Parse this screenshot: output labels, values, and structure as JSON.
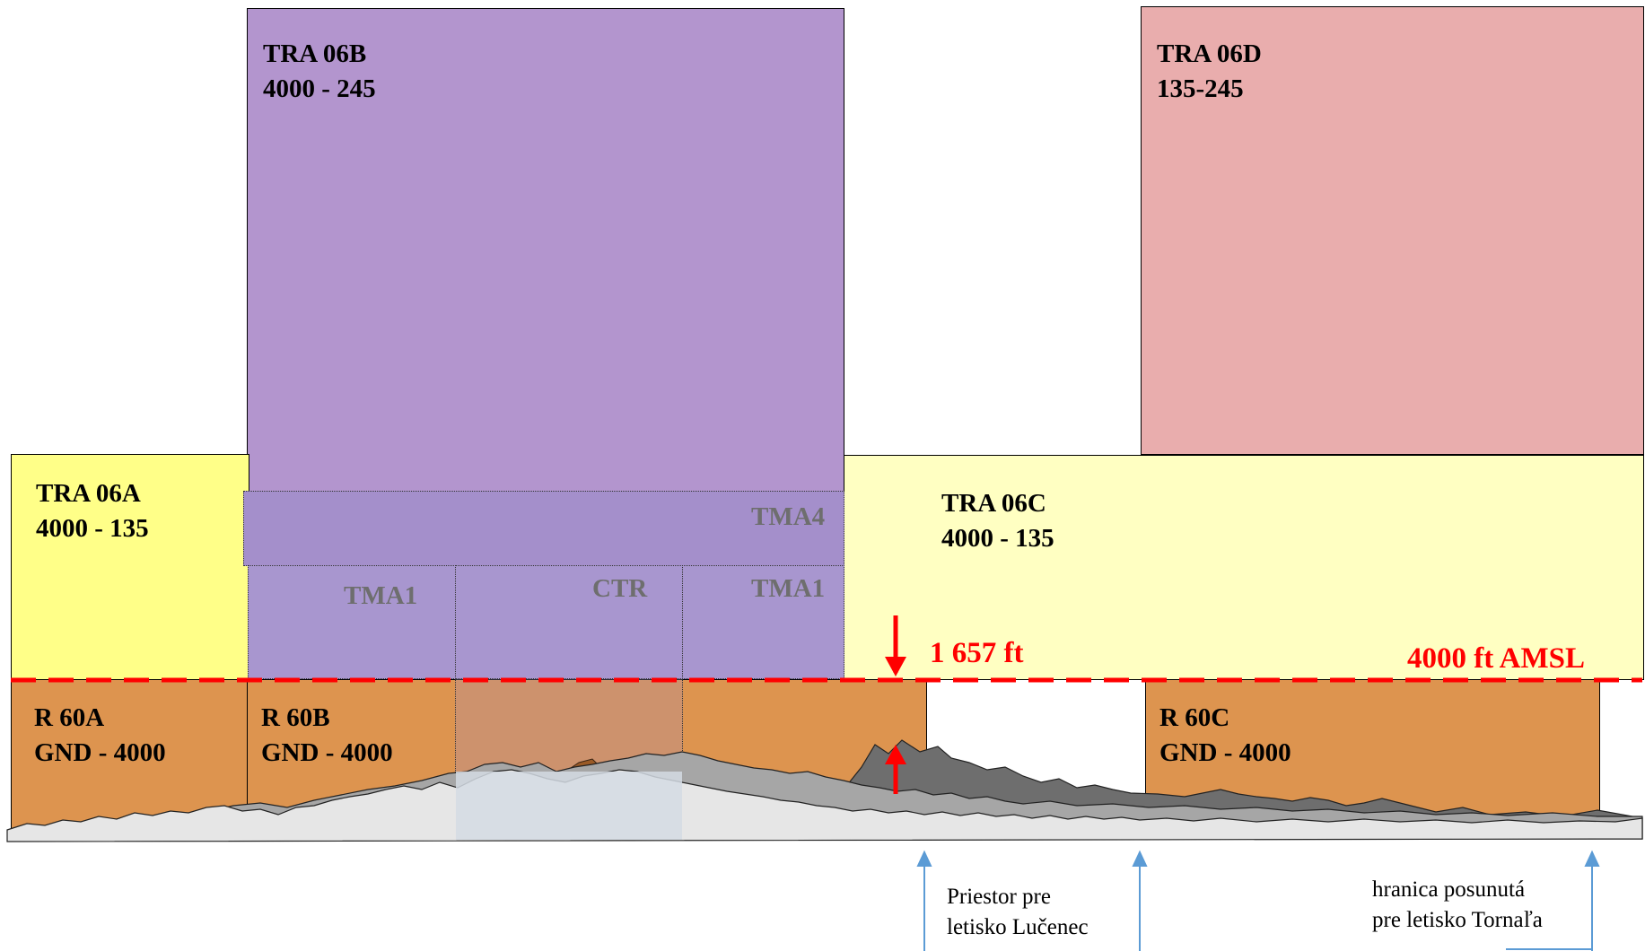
{
  "zones": {
    "tra06b": {
      "name": "TRA 06B",
      "limits": "4000 - 245",
      "color": "#b395ce"
    },
    "tra06d": {
      "name": "TRA 06D",
      "limits": "135-245",
      "color": "#e9adad"
    },
    "tra06a": {
      "name": "TRA 06A",
      "limits": "4000 - 135",
      "color": "#ffff88"
    },
    "tra06c": {
      "name": "TRA 06C",
      "limits": "4000 - 135",
      "color": "#ffffc2"
    },
    "r60a": {
      "name": "R 60A",
      "limits": "GND - 4000",
      "color": "#dd944f"
    },
    "r60b": {
      "name": "R 60B",
      "limits": "GND - 4000",
      "color": "#dd944f"
    },
    "r60c": {
      "name": "R 60C",
      "limits": "GND - 4000",
      "color": "#dd944f"
    }
  },
  "subzones": {
    "tma4": "TMA4",
    "tma1_left": "TMA1",
    "ctr": "CTR",
    "tma1_right": "TMA1"
  },
  "annotations": {
    "height_1657": "1 657 ft",
    "amsl_4000": "4000 ft AMSL",
    "lucenec_line1": "Priestor pre",
    "lucenec_line2": "letisko Lučenec",
    "tornala_line1": "hranica posunutá",
    "tornala_line2": "pre letisko Tornaľa"
  },
  "colors": {
    "limit_line": "#ff0000",
    "arrow_blue": "#5b9bd5",
    "overlay": "#9a8ac8",
    "terrain_light": "#e6e6e6",
    "terrain_mid": "#a6a6a6",
    "terrain_dark": "#6e6e6e",
    "ctr_ground": "#d3dae3"
  }
}
